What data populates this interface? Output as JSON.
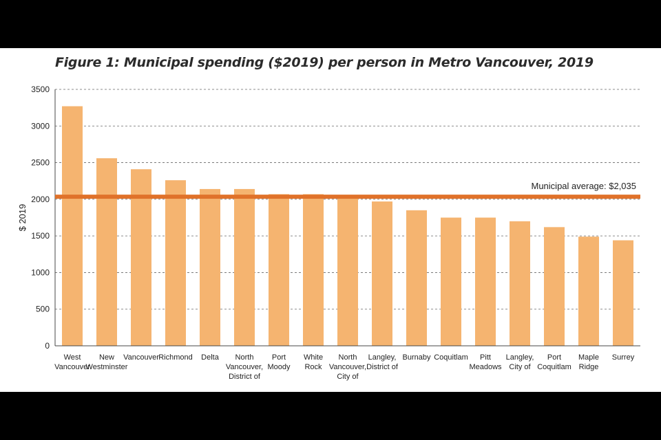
{
  "chart_data": {
    "type": "bar",
    "title": "Figure 1: Municipal spending ($2019) per person in Metro Vancouver, 2019",
    "xlabel": "",
    "ylabel": "$ 2019",
    "ylim": [
      0,
      3500
    ],
    "yticks": [
      0,
      500,
      1000,
      1500,
      2000,
      2500,
      3000,
      3500
    ],
    "grid": true,
    "categories": [
      [
        "West",
        "Vancouver"
      ],
      [
        "New",
        "Westminster"
      ],
      [
        "Vancouver"
      ],
      [
        "Richmond"
      ],
      [
        "Delta"
      ],
      [
        "North",
        "Vancouver,",
        "District of"
      ],
      [
        "Port",
        "Moody"
      ],
      [
        "White",
        "Rock"
      ],
      [
        "North",
        "Vancouver,",
        "City of"
      ],
      [
        "Langley,",
        "District of"
      ],
      [
        "Burnaby"
      ],
      [
        "Coquitlam"
      ],
      [
        "Pitt",
        "Meadows"
      ],
      [
        "Langley,",
        "City of"
      ],
      [
        "Port",
        "Coquitlam"
      ],
      [
        "Maple",
        "Ridge"
      ],
      [
        "Surrey"
      ]
    ],
    "values": [
      3270,
      2560,
      2410,
      2260,
      2140,
      2140,
      2070,
      2070,
      2040,
      1970,
      1850,
      1750,
      1750,
      1700,
      1620,
      1490,
      1440
    ],
    "bar_color": "#f5b470",
    "reference_line": {
      "value": 2035,
      "label": "Municipal average: $2,035",
      "color": "#e0722a"
    }
  }
}
